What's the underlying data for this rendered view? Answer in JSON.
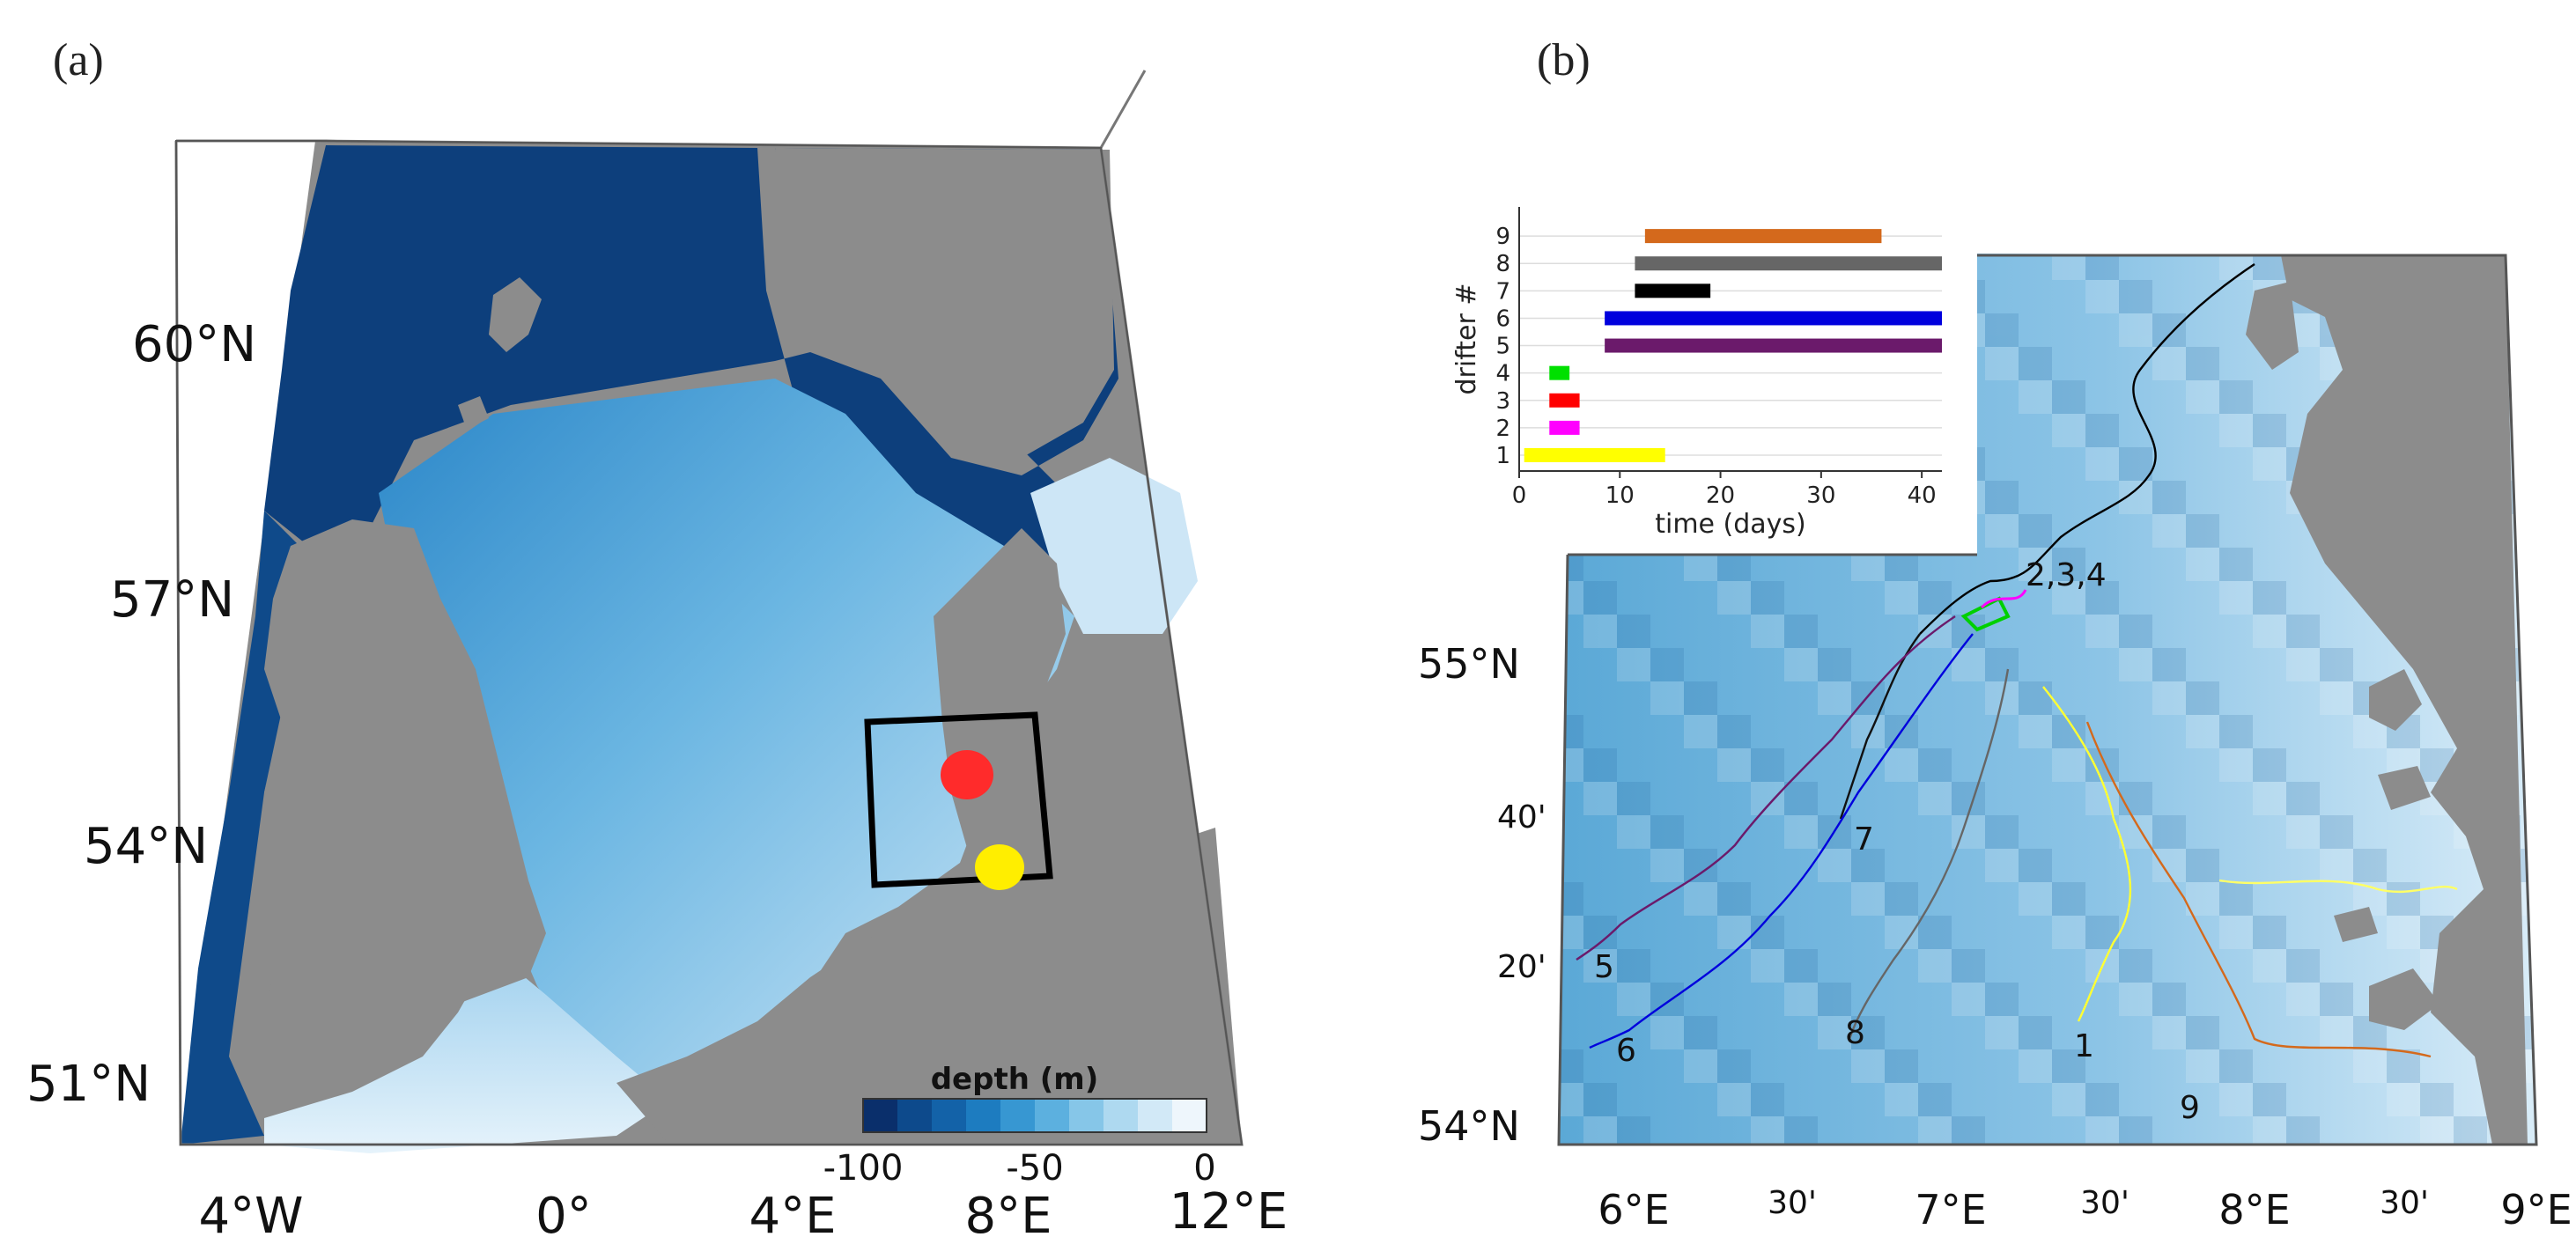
{
  "panel_a": {
    "label": "(a)",
    "lat_labels": [
      "60°N",
      "57°N",
      "54°N",
      "51°N"
    ],
    "lon_labels": [
      "4°W",
      "0°",
      "4°E",
      "8°E",
      "12°E"
    ],
    "colorbar": {
      "title": "depth (m)",
      "ticks": [
        "-100",
        "-50",
        "0"
      ],
      "colors": [
        "#0a2f6b",
        "#0d4a8c",
        "#1362a8",
        "#1d7cc0",
        "#3797d2",
        "#5cb0df",
        "#86c6e8",
        "#aed9f0",
        "#d2e9f7",
        "#eef6fc"
      ]
    },
    "markers": [
      {
        "name": "red-site",
        "color": "#ff2b2b"
      },
      {
        "name": "yellow-site",
        "color": "#ffee00"
      }
    ]
  },
  "panel_b": {
    "label": "(b)",
    "lat_labels": [
      "55°N",
      "40'",
      "20'",
      "54°N"
    ],
    "lon_labels": [
      "6°E",
      "30'",
      "7°E",
      "30'",
      "8°E",
      "30'",
      "9°E"
    ],
    "drifter_labels": [
      "2,3,4",
      "7",
      "5",
      "6",
      "8",
      "1",
      "9"
    ],
    "inset": {
      "xlabel": "time (days)",
      "ylabel": "drifter #",
      "x_ticks": [
        "0",
        "10",
        "20",
        "30",
        "40"
      ],
      "y_ticks": [
        "1",
        "2",
        "3",
        "4",
        "5",
        "6",
        "7",
        "8",
        "9"
      ]
    }
  },
  "chart_data": {
    "type": "bar",
    "orientation": "horizontal",
    "xlabel": "time (days)",
    "ylabel": "drifter #",
    "xlim": [
      0,
      42
    ],
    "categories": [
      "1",
      "2",
      "3",
      "4",
      "5",
      "6",
      "7",
      "8",
      "9"
    ],
    "series": [
      {
        "values": [
          [
            0.5,
            14.5
          ],
          [
            3,
            6
          ],
          [
            3,
            6
          ],
          [
            3,
            5
          ],
          [
            8.5,
            42
          ],
          [
            8.5,
            42
          ],
          [
            11.5,
            19
          ],
          [
            11.5,
            42
          ],
          [
            12.5,
            36
          ]
        ]
      }
    ],
    "colors": [
      "#ffff00",
      "#ff00ff",
      "#ff0000",
      "#00e000",
      "#6b1a6b",
      "#0000dd",
      "#000000",
      "#666666",
      "#d4691c"
    ]
  }
}
